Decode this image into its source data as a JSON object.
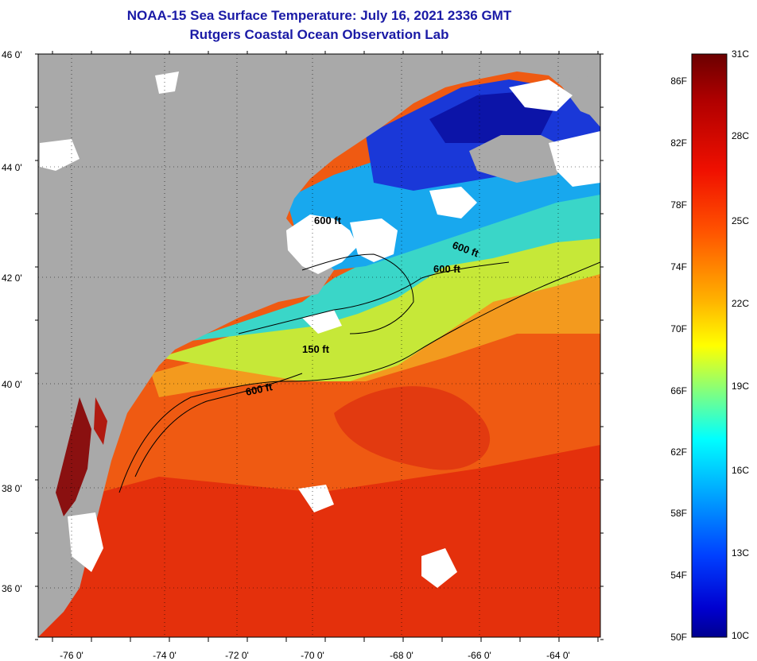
{
  "title": {
    "line1": "NOAA-15 Sea Surface Temperature:  July 16, 2021 2336 GMT",
    "line2": "Rutgers Coastal Ocean Observation Lab"
  },
  "map": {
    "lat_labels": [
      "46 0'",
      "44 0'",
      "42 0'",
      "40 0'",
      "38 0'",
      "36 0'"
    ],
    "lon_labels": [
      "-76 0'",
      "-74 0'",
      "-72 0'",
      "-70 0'",
      "-68 0'",
      "-66 0'",
      "-64 0'"
    ],
    "contour_labels": [
      "600 ft",
      "600 ft",
      "600 ft",
      "150 ft",
      "600 ft"
    ],
    "colors": {
      "land": "#a9a9a9",
      "cloud": "#ffffff",
      "warm_ocean": "#e8420f",
      "cool_ocean": "#2ad0f0",
      "cold_ocean": "#1010b8"
    }
  },
  "colorbar": {
    "c_labels": [
      "31C",
      "28C",
      "25C",
      "22C",
      "19C",
      "16C",
      "13C",
      "10C"
    ],
    "f_labels": [
      "86F",
      "82F",
      "78F",
      "74F",
      "70F",
      "66F",
      "62F",
      "58F",
      "54F",
      "50F"
    ],
    "colors": [
      "#00008f",
      "#0000ff",
      "#0050ff",
      "#00a0ff",
      "#00e0ff",
      "#40ffc0",
      "#a0ff60",
      "#f0ff00",
      "#ffc000",
      "#ff8000",
      "#ff4000",
      "#e00000",
      "#900000"
    ]
  }
}
